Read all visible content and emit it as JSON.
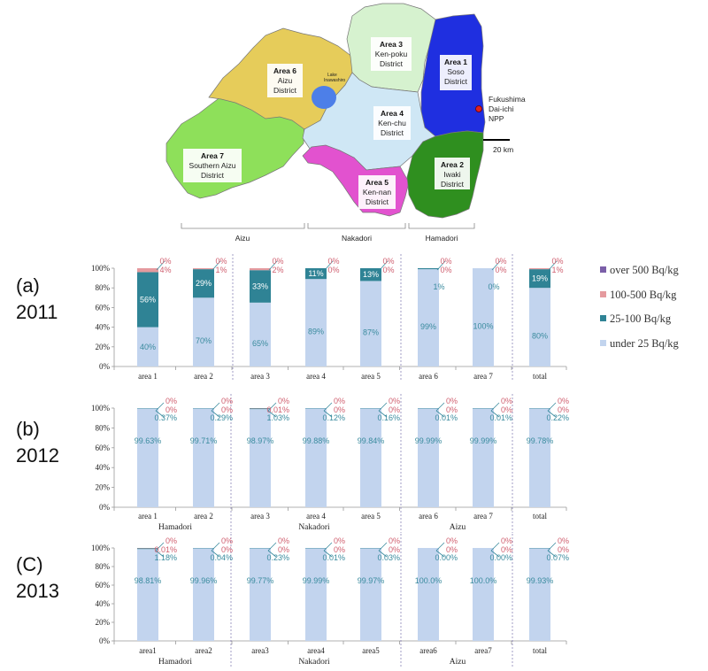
{
  "colors": {
    "over500": "#7b5fa8",
    "b100_500": "#e59a9e",
    "b25_100": "#2f8395",
    "under25": "#c2d4ee",
    "label_teal": "#3a8b9e",
    "label_pink": "#d06070",
    "area1": "#1f2fe0",
    "area2": "#2f8f1f",
    "area3": "#d6f2cf",
    "area4": "#cfe7f5",
    "area5": "#e252cf",
    "area6": "#e6cc5a",
    "area7": "#8ee05a"
  },
  "map": {
    "areas": [
      {
        "id": "area1",
        "title": "Area 1",
        "line1": "Soso",
        "line2": "District"
      },
      {
        "id": "area2",
        "title": "Area 2",
        "line1": "Iwaki",
        "line2": "District"
      },
      {
        "id": "area3",
        "title": "Area 3",
        "line1": "Ken-poku",
        "line2": "District"
      },
      {
        "id": "area4",
        "title": "Area 4",
        "line1": "Ken-chu",
        "line2": "District"
      },
      {
        "id": "area5",
        "title": "Area 5",
        "line1": "Ken-nan",
        "line2": "District"
      },
      {
        "id": "area6",
        "title": "Area 6",
        "line1": "Aizu",
        "line2": "District"
      },
      {
        "id": "area7",
        "title": "Area 7",
        "line1": "Southern Aizu",
        "line2": "District"
      }
    ],
    "npp": [
      "Fukushima",
      "Dai-ichi",
      "NPP"
    ],
    "lake": [
      "Lake",
      "Inawashiro"
    ],
    "scale": "20 km",
    "regions": [
      "Aizu",
      "Nakadori",
      "Hamadori"
    ]
  },
  "legend": [
    "over 500 Bq/kg",
    "100-500 Bq/kg",
    "25-100 Bq/kg",
    "under 25 Bq/kg"
  ],
  "chart_data": [
    {
      "type": "bar",
      "panel": "(a)",
      "year": "2011",
      "categories": [
        "area 1",
        "area 2",
        "area 3",
        "area 4",
        "area 5",
        "area 6",
        "area 7",
        "total"
      ],
      "ylim": [
        0,
        100
      ],
      "yticks": [
        "0%",
        "20%",
        "40%",
        "60%",
        "80%",
        "100%"
      ],
      "series": [
        {
          "name": "under 25 Bq/kg",
          "values": [
            40,
            70,
            65,
            89,
            87,
            99,
            100,
            80
          ]
        },
        {
          "name": "25-100 Bq/kg",
          "values": [
            56,
            29,
            33,
            11,
            13,
            1,
            0,
            19
          ]
        },
        {
          "name": "100-500 Bq/kg",
          "values": [
            4,
            1,
            2,
            0,
            0,
            0,
            0,
            1
          ]
        },
        {
          "name": "over 500 Bq/kg",
          "values": [
            0,
            0,
            0,
            0,
            0,
            0,
            0,
            0
          ]
        }
      ],
      "labels": {
        "under": [
          "40%",
          "70%",
          "65%",
          "89%",
          "87%",
          "99%",
          "100%",
          "80%"
        ],
        "mid": [
          "56%",
          "29%",
          "33%",
          "11%",
          "13%",
          "1%",
          "0%",
          "19%"
        ],
        "b100": [
          "4%",
          "1%",
          "2%",
          "0%",
          "0%",
          "0%",
          "0%",
          "1%"
        ],
        "over": [
          "0%",
          "0%",
          "0%",
          "0%",
          "0%",
          "0%",
          "0%",
          "0%"
        ]
      },
      "regions": []
    },
    {
      "type": "bar",
      "panel": "(b)",
      "year": "2012",
      "categories": [
        "area 1",
        "area 2",
        "area 3",
        "area 4",
        "area 5",
        "area 6",
        "area 7",
        "total"
      ],
      "ylim": [
        0,
        100
      ],
      "yticks": [
        "0%",
        "20%",
        "40%",
        "60%",
        "80%",
        "100%"
      ],
      "series": [
        {
          "name": "under 25 Bq/kg",
          "values": [
            99.63,
            99.71,
            98.97,
            99.88,
            99.84,
            99.99,
            99.99,
            99.78
          ]
        },
        {
          "name": "25-100 Bq/kg",
          "values": [
            0.37,
            0.29,
            1.03,
            0.12,
            0.16,
            0.01,
            0.01,
            0.22
          ]
        },
        {
          "name": "100-500 Bq/kg",
          "values": [
            0,
            0,
            0.01,
            0,
            0,
            0,
            0,
            0
          ]
        },
        {
          "name": "over 500 Bq/kg",
          "values": [
            0,
            0,
            0,
            0,
            0,
            0,
            0,
            0
          ]
        }
      ],
      "labels": {
        "under": [
          "99.63%",
          "99.71%",
          "98.97%",
          "99.88%",
          "99.84%",
          "99.99%",
          "99.99%",
          "99.78%"
        ],
        "mid": [
          "0.37%",
          "0.29%",
          "1.03%",
          "0.12%",
          "0.16%",
          "0.01%",
          "0.01%",
          "0.22%"
        ],
        "b100": [
          "0%",
          "0%",
          "0.01%",
          "0%",
          "0%",
          "0%",
          "0%",
          "0%"
        ],
        "over": [
          "0%",
          "0%",
          "0%",
          "0%",
          "0%",
          "0%",
          "0%",
          "0%"
        ]
      },
      "regions": [
        "Hamadori",
        "Nakadori",
        "Aizu"
      ]
    },
    {
      "type": "bar",
      "panel": "(C)",
      "year": "2013",
      "categories": [
        "area1",
        "area2",
        "area3",
        "area4",
        "area5",
        "area6",
        "area7",
        "total"
      ],
      "ylim": [
        0,
        100
      ],
      "yticks": [
        "0%",
        "20%",
        "40%",
        "60%",
        "80%",
        "100%"
      ],
      "series": [
        {
          "name": "under 25 Bq/kg",
          "values": [
            98.81,
            99.96,
            99.77,
            99.99,
            99.97,
            100.0,
            100.0,
            99.93
          ]
        },
        {
          "name": "25-100 Bq/kg",
          "values": [
            1.18,
            0.04,
            0.23,
            0.01,
            0.03,
            0.0,
            0.0,
            0.07
          ]
        },
        {
          "name": "100-500 Bq/kg",
          "values": [
            0.01,
            0,
            0,
            0,
            0,
            0,
            0,
            0
          ]
        },
        {
          "name": "over 500 Bq/kg",
          "values": [
            0,
            0,
            0,
            0,
            0,
            0,
            0,
            0
          ]
        }
      ],
      "labels": {
        "under": [
          "98.81%",
          "99.96%",
          "99.77%",
          "99.99%",
          "99.97%",
          "100.0%",
          "100.0%",
          "99.93%"
        ],
        "mid": [
          "1.18%",
          "0.04%",
          "0.23%",
          "0.01%",
          "0.03%",
          "0.00%",
          "0.00%",
          "0.07%"
        ],
        "b100": [
          "0.01%",
          "0%",
          "0%",
          "0%",
          "0%",
          "0%",
          "0%",
          "0%"
        ],
        "over": [
          "0%",
          "0%",
          "0%",
          "0%",
          "0%",
          "0%",
          "0%",
          "0%"
        ]
      },
      "regions": [
        "Hamadori",
        "Nakadori",
        "Aizu"
      ]
    }
  ]
}
